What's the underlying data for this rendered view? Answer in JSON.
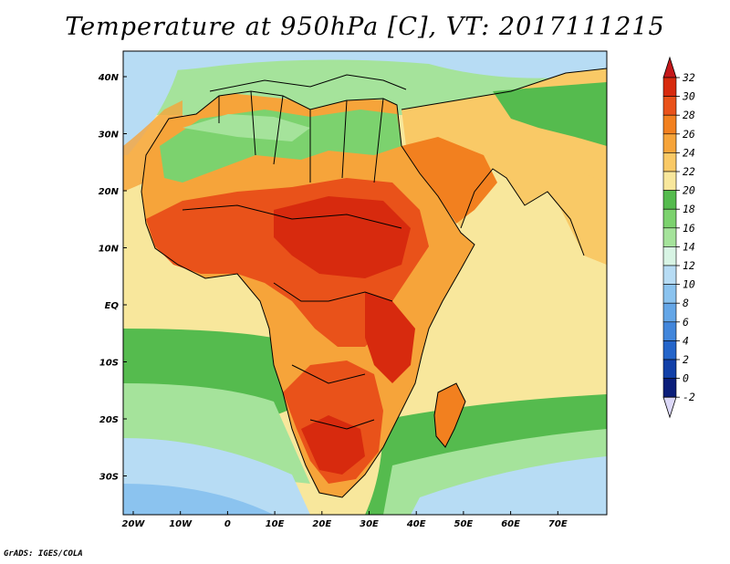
{
  "title": "Temperature at 950hPa [C], VT: 2017111215",
  "credit": "GrADS: IGES/COLA",
  "map": {
    "lat_labels": [
      "40N",
      "30N",
      "20N",
      "10N",
      "EQ",
      "10S",
      "20S",
      "30S"
    ],
    "lon_labels": [
      "20W",
      "10W",
      "0",
      "10E",
      "20E",
      "30E",
      "40E",
      "50E",
      "60E",
      "70E"
    ]
  },
  "colorbar": {
    "levels": [
      "32",
      "30",
      "28",
      "26",
      "24",
      "22",
      "20",
      "18",
      "16",
      "14",
      "12",
      "10",
      "8",
      "6",
      "4",
      "2",
      "0",
      "-2"
    ],
    "colors": [
      "#d72a0e",
      "#e9521a",
      "#f2801f",
      "#f6a43a",
      "#f9c966",
      "#f8e79c",
      "#55bb4e",
      "#7cd26e",
      "#a5e39b",
      "#d8f4e4",
      "#b7dcf4",
      "#8bc3ef",
      "#64a6e7",
      "#4286db",
      "#2465ca",
      "#1240a8",
      "#0b1e7a"
    ],
    "top_arrow_color": "#c4181a",
    "bottom_arrow_color": "#dcd8f8"
  }
}
